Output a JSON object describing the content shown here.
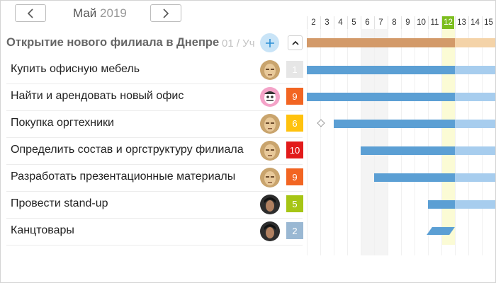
{
  "header": {
    "month": "Май",
    "year": "2019"
  },
  "project": {
    "title": "Открытие нового филиала в Днепре",
    "meta": "01 / Уч",
    "add_icon": "plus-icon",
    "collapse_icon": "chevron-up-icon"
  },
  "tasks": [
    {
      "label": "Купить офисную мебель",
      "badge": "1",
      "badge_color": "#e6e6e6",
      "avatar": "avatar-beige"
    },
    {
      "label": "Найти и арендовать новый офис",
      "badge": "9",
      "badge_color": "#f26522",
      "avatar": "avatar-pink"
    },
    {
      "label": "Покупка оргтехники",
      "badge": "6",
      "badge_color": "#ffc20e",
      "avatar": "avatar-beige"
    },
    {
      "label": "Определить состав и оргструктуру филиала",
      "badge": "10",
      "badge_color": "#e21b1b",
      "avatar": "avatar-beige"
    },
    {
      "label": "Разработать презентационные материалы",
      "badge": "9",
      "badge_color": "#f26522",
      "avatar": "avatar-beige"
    },
    {
      "label": "Провести stand-up",
      "badge": "5",
      "badge_color": "#a6c515",
      "avatar": "avatar-dark"
    },
    {
      "label": "Канцтовары",
      "badge": "2",
      "badge_color": "#9ab8d3",
      "avatar": "avatar-dark"
    }
  ],
  "gantt": {
    "days": [
      "2",
      "3",
      "4",
      "5",
      "6",
      "7",
      "8",
      "9",
      "10",
      "11",
      "12",
      "13",
      "14",
      "15"
    ],
    "today": "12",
    "today_color": "#7cbd1e",
    "bar_color": "#5b9fd4",
    "bar_future_color": "#a7cdee",
    "project_bar_color": "#d39a69",
    "project_bar_future_color": "#f4d3a8"
  }
}
